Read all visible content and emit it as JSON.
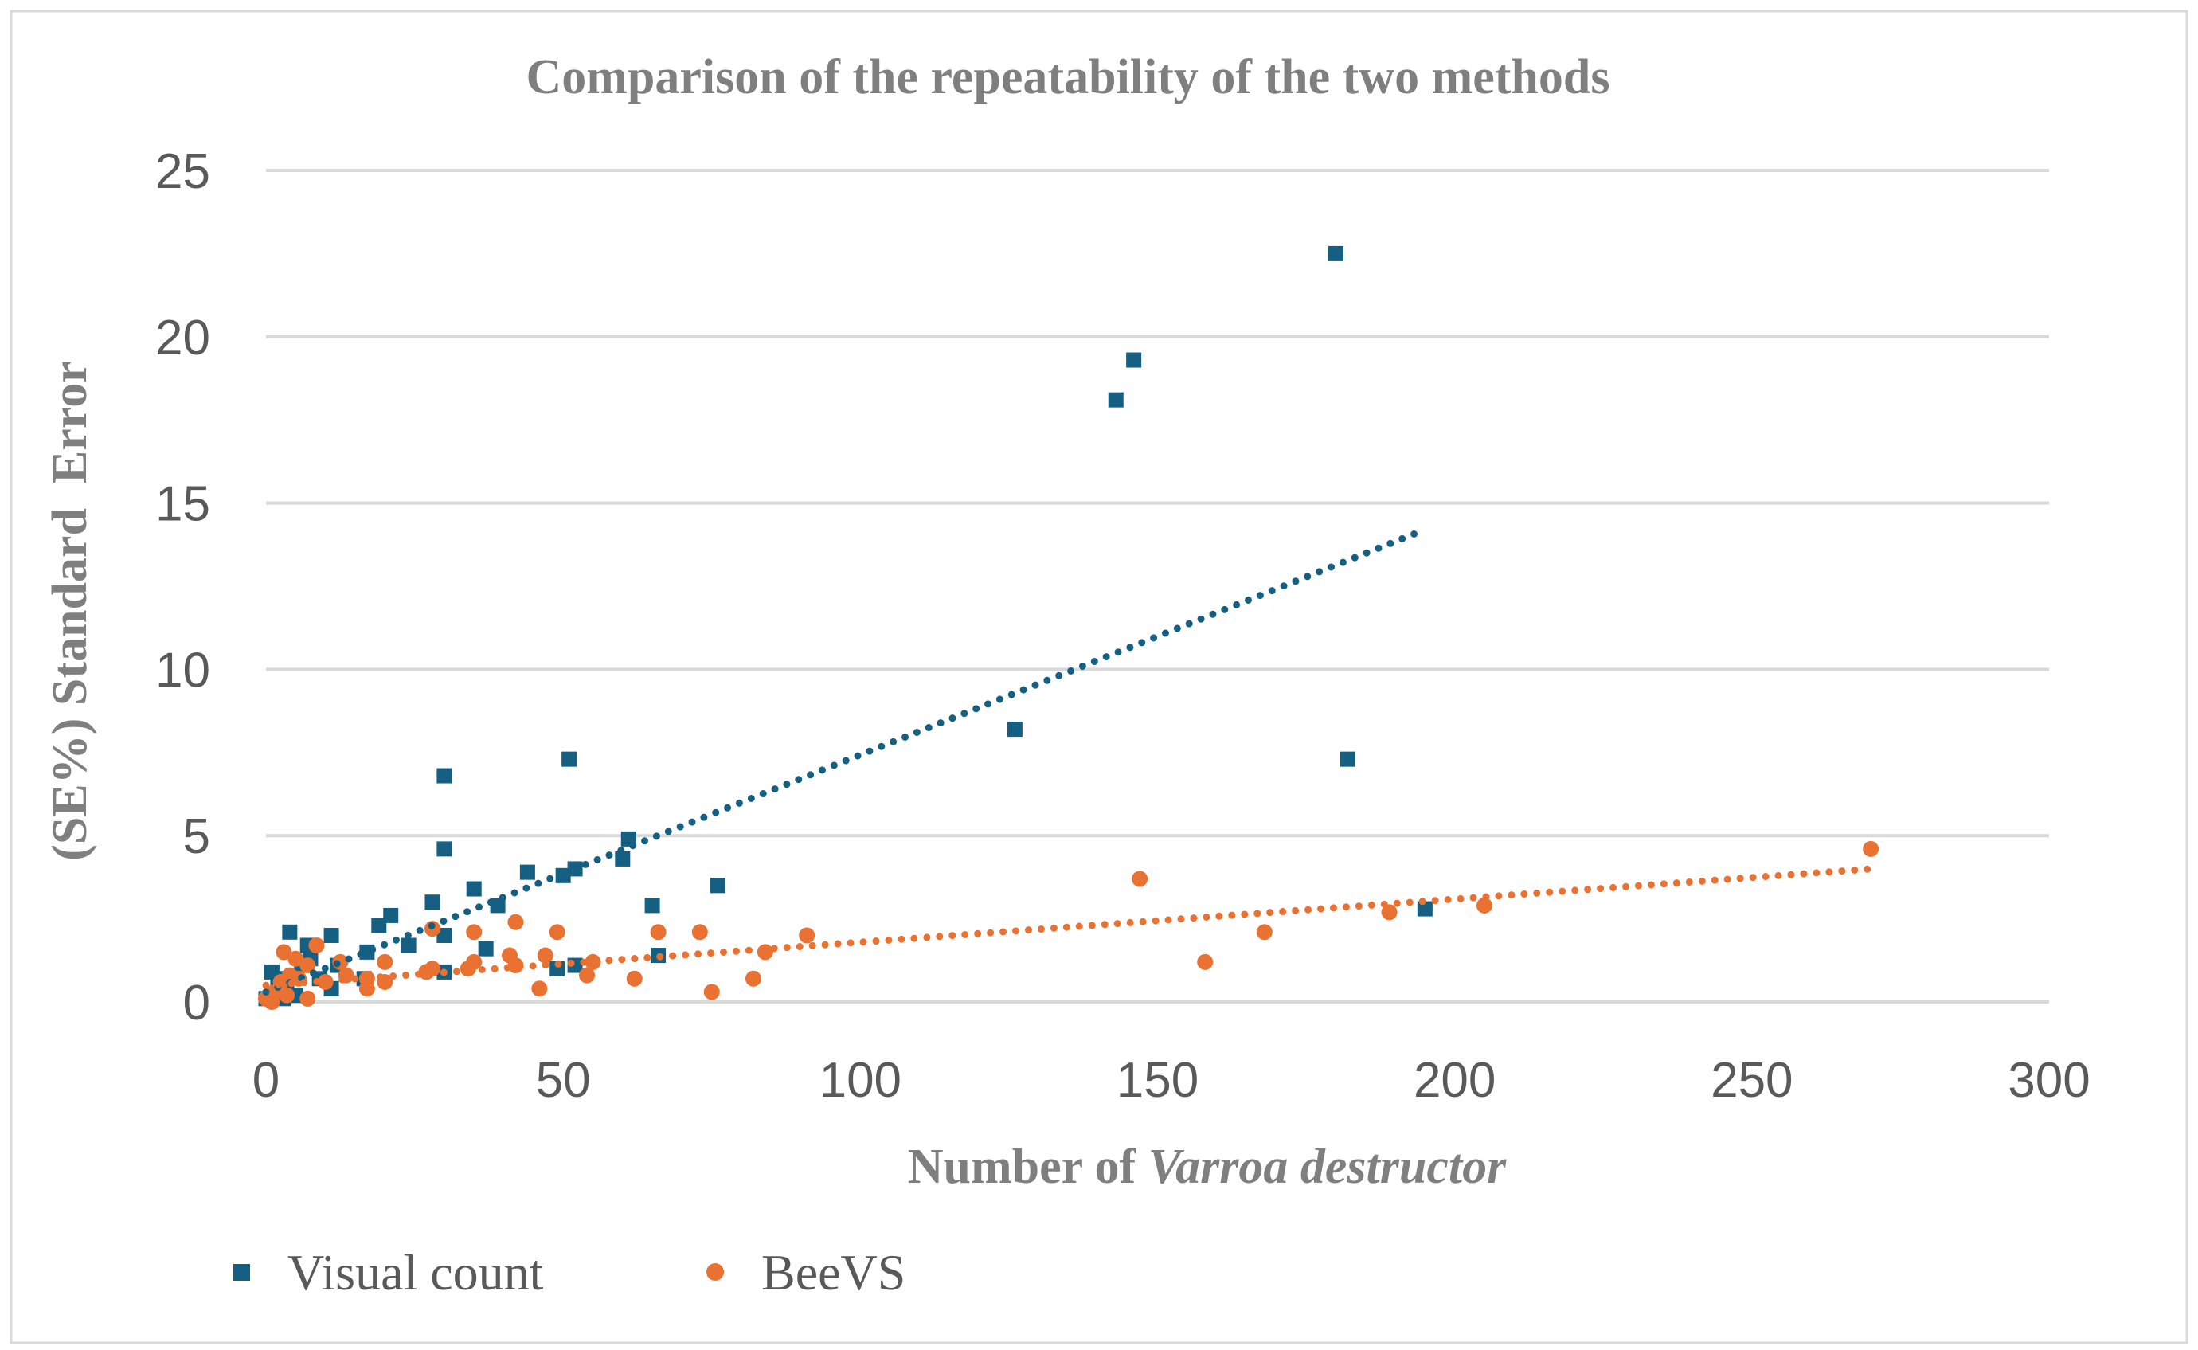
{
  "chart_data": {
    "type": "scatter",
    "title": "Comparison of the repeatability of the two methods",
    "xlabel": {
      "text": "Number of ",
      "species": "Varroa destructor"
    },
    "ylabel": "(SE%) Standard  Error",
    "xlim": [
      0,
      300
    ],
    "ylim": [
      0,
      25
    ],
    "xticks": [
      0,
      50,
      100,
      150,
      200,
      250,
      300
    ],
    "yticks": [
      0,
      5,
      10,
      15,
      20,
      25
    ],
    "grid": "horizontal",
    "legend": "bottom-left",
    "series": [
      {
        "name": "Visual count",
        "marker": "square",
        "color": "#156082",
        "points": [
          [
            180,
            22.5
          ],
          [
            146,
            19.3
          ],
          [
            143,
            18.1
          ],
          [
            126,
            8.2
          ],
          [
            182,
            7.3
          ],
          [
            51,
            7.3
          ],
          [
            30,
            6.8
          ],
          [
            30,
            4.6
          ],
          [
            61,
            4.9
          ],
          [
            60,
            4.3
          ],
          [
            52,
            4.0
          ],
          [
            50,
            3.8
          ],
          [
            44,
            3.9
          ],
          [
            35,
            3.4
          ],
          [
            39,
            2.9
          ],
          [
            28,
            3.0
          ],
          [
            76,
            3.5
          ],
          [
            65,
            2.9
          ],
          [
            66,
            1.4
          ],
          [
            195,
            2.8
          ],
          [
            21,
            2.6
          ],
          [
            19,
            2.3
          ],
          [
            4,
            2.1
          ],
          [
            11,
            2.0
          ],
          [
            30,
            2.0
          ],
          [
            24,
            1.7
          ],
          [
            37,
            1.6
          ],
          [
            7,
            1.7
          ],
          [
            17,
            1.5
          ],
          [
            52,
            1.1
          ],
          [
            49,
            1.0
          ],
          [
            30,
            0.9
          ],
          [
            12,
            1.1
          ],
          [
            9,
            0.7
          ],
          [
            11,
            0.4
          ],
          [
            1,
            0.9
          ],
          [
            3.5,
            0.5
          ],
          [
            5,
            0.2
          ],
          [
            0,
            0.1
          ],
          [
            2,
            0.7
          ],
          [
            6,
            1.1
          ],
          [
            7.5,
            1.3
          ],
          [
            16.5,
            0.7
          ],
          [
            3,
            0.1
          ]
        ]
      },
      {
        "name": "BeeVS",
        "marker": "circle",
        "color": "#E97132",
        "points": [
          [
            270,
            4.6
          ],
          [
            147,
            3.7
          ],
          [
            205,
            2.9
          ],
          [
            189,
            2.7
          ],
          [
            168,
            2.1
          ],
          [
            158,
            1.2
          ],
          [
            91,
            2.0
          ],
          [
            84,
            1.5
          ],
          [
            82,
            0.7
          ],
          [
            75,
            0.3
          ],
          [
            73,
            2.1
          ],
          [
            66,
            2.1
          ],
          [
            62,
            0.7
          ],
          [
            49,
            2.1
          ],
          [
            42,
            2.4
          ],
          [
            35,
            2.1
          ],
          [
            28,
            2.2
          ],
          [
            47,
            1.4
          ],
          [
            46,
            0.4
          ],
          [
            55,
            1.2
          ],
          [
            54,
            0.8
          ],
          [
            41,
            1.4
          ],
          [
            42,
            1.1
          ],
          [
            35,
            1.2
          ],
          [
            34,
            1.0
          ],
          [
            28,
            1.0
          ],
          [
            27,
            0.9
          ],
          [
            20,
            1.2
          ],
          [
            20,
            0.6
          ],
          [
            17,
            0.4
          ],
          [
            17,
            0.7
          ],
          [
            12.5,
            1.2
          ],
          [
            13.5,
            0.8
          ],
          [
            8.5,
            1.7
          ],
          [
            3,
            1.5
          ],
          [
            5,
            1.3
          ],
          [
            7,
            1.1
          ],
          [
            4,
            0.8
          ],
          [
            2.5,
            0.6
          ],
          [
            1.5,
            0.3
          ],
          [
            5.5,
            0.7
          ],
          [
            7,
            0.1
          ],
          [
            1,
            0
          ],
          [
            3.5,
            0.2
          ],
          [
            10,
            0.6
          ],
          [
            0,
            0.1
          ]
        ]
      }
    ],
    "trendlines": [
      {
        "series": "Visual count",
        "type": "linear",
        "x": [
          0,
          195
        ],
        "y": [
          0.3,
          14.2
        ]
      },
      {
        "series": "BeeVS",
        "type": "linear",
        "x": [
          0,
          270
        ],
        "y": [
          0.5,
          4.0
        ]
      }
    ]
  }
}
